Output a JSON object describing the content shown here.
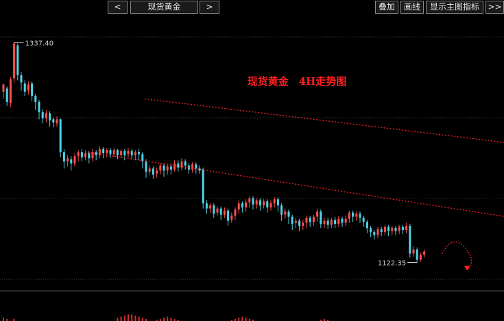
{
  "toolbar": {
    "prev_label": "<",
    "symbol": "现货黄金",
    "next_label": ">",
    "overlay_label": "叠加",
    "drawline_label": "画线",
    "indicator_label": "显示主图指标",
    "expand_label": ">>"
  },
  "chart_data": {
    "type": "candlestick",
    "title": "现货黄金　4H走势图",
    "high_label": "1337.40",
    "low_label": "1122.35",
    "ylim": [
      1100,
      1345
    ],
    "colors": {
      "up": "#ff4d4d",
      "down": "#4fd5e8",
      "trend_line": "#ff2020",
      "grid": "#3a3a3a",
      "title": "#ff2020"
    },
    "channel_upper": [
      [
        40,
        1282
      ],
      [
        244,
        1196
      ]
    ],
    "channel_lower": [
      [
        24,
        1230
      ],
      [
        244,
        1112
      ]
    ],
    "candles": [
      [
        1289,
        1296,
        1282,
        1297
      ],
      [
        1292,
        1279,
        1275,
        1294
      ],
      [
        1278,
        1301,
        1274,
        1303
      ],
      [
        1302,
        1336,
        1298,
        1337.4
      ],
      [
        1334,
        1305,
        1300,
        1336
      ],
      [
        1305,
        1298,
        1290,
        1308
      ],
      [
        1297,
        1289,
        1285,
        1300
      ],
      [
        1290,
        1296,
        1286,
        1299
      ],
      [
        1297,
        1285,
        1280,
        1299
      ],
      [
        1285,
        1279,
        1271,
        1287
      ],
      [
        1279,
        1269,
        1262,
        1281
      ],
      [
        1269,
        1263,
        1258,
        1272
      ],
      [
        1263,
        1268,
        1259,
        1271
      ],
      [
        1268,
        1261,
        1255,
        1270
      ],
      [
        1262,
        1259,
        1254,
        1264
      ],
      [
        1258,
        1262,
        1255,
        1265
      ],
      [
        1262,
        1230,
        1225,
        1263
      ],
      [
        1230,
        1221,
        1214,
        1233
      ],
      [
        1221,
        1224,
        1216,
        1227
      ],
      [
        1223,
        1219,
        1212,
        1226
      ],
      [
        1219,
        1226,
        1216,
        1229
      ],
      [
        1226,
        1230,
        1221,
        1232
      ],
      [
        1230,
        1225,
        1221,
        1233
      ],
      [
        1225,
        1229,
        1222,
        1232
      ],
      [
        1229,
        1224,
        1219,
        1231
      ],
      [
        1224,
        1230,
        1221,
        1233
      ],
      [
        1230,
        1227,
        1222,
        1232
      ],
      [
        1227,
        1233,
        1224,
        1236
      ],
      [
        1233,
        1229,
        1224,
        1235
      ],
      [
        1229,
        1232,
        1225,
        1234
      ],
      [
        1232,
        1228,
        1224,
        1234
      ],
      [
        1228,
        1232,
        1225,
        1234
      ],
      [
        1232,
        1227,
        1223,
        1233
      ],
      [
        1227,
        1231,
        1224,
        1233
      ],
      [
        1231,
        1227,
        1222,
        1233
      ],
      [
        1228,
        1231,
        1225,
        1234
      ],
      [
        1231,
        1227,
        1223,
        1233
      ],
      [
        1227,
        1230,
        1222,
        1232
      ],
      [
        1230,
        1228,
        1222,
        1233
      ],
      [
        1228,
        1221,
        1214,
        1230
      ],
      [
        1221,
        1211,
        1205,
        1223
      ],
      [
        1211,
        1214,
        1208,
        1217
      ],
      [
        1214,
        1208,
        1204,
        1216
      ],
      [
        1209,
        1212,
        1205,
        1215
      ],
      [
        1212,
        1217,
        1208,
        1219
      ],
      [
        1217,
        1212,
        1206,
        1219
      ],
      [
        1212,
        1216,
        1208,
        1218
      ],
      [
        1216,
        1213,
        1208,
        1219
      ],
      [
        1213,
        1219,
        1211,
        1222
      ],
      [
        1219,
        1215,
        1211,
        1222
      ],
      [
        1215,
        1221,
        1212,
        1224
      ],
      [
        1221,
        1217,
        1213,
        1223
      ],
      [
        1217,
        1213,
        1209,
        1219
      ],
      [
        1213,
        1218,
        1210,
        1220
      ],
      [
        1218,
        1214,
        1209,
        1220
      ],
      [
        1214,
        1212,
        1209,
        1217
      ],
      [
        1213,
        1180,
        1175,
        1215
      ],
      [
        1180,
        1175,
        1170,
        1183
      ],
      [
        1175,
        1178,
        1171,
        1180
      ],
      [
        1178,
        1170,
        1166,
        1180
      ],
      [
        1171,
        1175,
        1168,
        1177
      ],
      [
        1175,
        1169,
        1164,
        1177
      ],
      [
        1169,
        1173,
        1166,
        1176
      ],
      [
        1173,
        1163,
        1158,
        1175
      ],
      [
        1164,
        1168,
        1161,
        1171
      ],
      [
        1168,
        1174,
        1164,
        1176
      ],
      [
        1174,
        1180,
        1170,
        1183
      ],
      [
        1180,
        1176,
        1171,
        1182
      ],
      [
        1176,
        1181,
        1172,
        1184
      ],
      [
        1181,
        1185,
        1176,
        1187
      ],
      [
        1185,
        1179,
        1174,
        1187
      ],
      [
        1179,
        1183,
        1175,
        1185
      ],
      [
        1183,
        1178,
        1173,
        1185
      ],
      [
        1178,
        1182,
        1175,
        1184
      ],
      [
        1182,
        1176,
        1171,
        1184
      ],
      [
        1176,
        1180,
        1173,
        1183
      ],
      [
        1180,
        1184,
        1176,
        1186
      ],
      [
        1184,
        1178,
        1172,
        1186
      ],
      [
        1178,
        1169,
        1163,
        1180
      ],
      [
        1169,
        1172,
        1165,
        1175
      ],
      [
        1172,
        1167,
        1160,
        1174
      ],
      [
        1167,
        1160,
        1154,
        1169
      ],
      [
        1161,
        1163,
        1156,
        1166
      ],
      [
        1163,
        1158,
        1153,
        1165
      ],
      [
        1158,
        1161,
        1154,
        1164
      ],
      [
        1161,
        1166,
        1156,
        1168
      ],
      [
        1166,
        1162,
        1157,
        1168
      ],
      [
        1162,
        1167,
        1158,
        1169
      ],
      [
        1167,
        1172,
        1162,
        1175
      ],
      [
        1172,
        1160,
        1156,
        1174
      ],
      [
        1160,
        1163,
        1156,
        1166
      ],
      [
        1163,
        1159,
        1155,
        1166
      ],
      [
        1159,
        1164,
        1156,
        1166
      ],
      [
        1164,
        1160,
        1156,
        1167
      ],
      [
        1160,
        1165,
        1157,
        1168
      ],
      [
        1165,
        1161,
        1157,
        1167
      ],
      [
        1161,
        1165,
        1158,
        1168
      ],
      [
        1165,
        1171,
        1161,
        1173
      ],
      [
        1171,
        1167,
        1162,
        1173
      ],
      [
        1167,
        1170,
        1163,
        1172
      ],
      [
        1170,
        1166,
        1161,
        1172
      ],
      [
        1166,
        1162,
        1157,
        1168
      ],
      [
        1162,
        1156,
        1151,
        1164
      ],
      [
        1156,
        1152,
        1147,
        1158
      ],
      [
        1152,
        1149,
        1145,
        1154
      ],
      [
        1149,
        1155,
        1146,
        1157
      ],
      [
        1155,
        1152,
        1148,
        1157
      ],
      [
        1152,
        1157,
        1149,
        1159
      ],
      [
        1157,
        1153,
        1148,
        1159
      ],
      [
        1153,
        1156,
        1149,
        1158
      ],
      [
        1156,
        1153,
        1149,
        1158
      ],
      [
        1153,
        1157,
        1150,
        1159
      ],
      [
        1157,
        1154,
        1150,
        1159
      ],
      [
        1154,
        1158,
        1151,
        1161
      ],
      [
        1158,
        1131,
        1127,
        1160
      ],
      [
        1131,
        1135,
        1128,
        1138
      ],
      [
        1135,
        1125,
        1122.35,
        1137
      ],
      [
        1125,
        1130,
        1123,
        1132
      ],
      [
        1130,
        1133,
        1127,
        1135
      ]
    ],
    "forecast_path": [
      [
        123,
        1131
      ],
      [
        126,
        1141
      ],
      [
        129,
        1131
      ],
      [
        130,
        1115
      ]
    ],
    "volume": [
      3,
      2,
      0,
      2,
      0,
      0,
      0,
      0,
      0,
      0,
      0,
      0,
      0,
      0,
      0,
      0,
      0,
      0,
      0,
      0,
      0,
      0,
      0,
      0,
      0,
      0,
      0,
      0,
      0,
      0,
      0,
      0,
      3,
      4,
      5,
      6,
      6,
      5,
      4,
      3,
      2,
      0,
      0,
      1,
      2,
      3,
      4,
      3,
      2,
      1,
      0,
      0,
      0,
      0,
      0,
      0,
      0,
      0,
      0,
      0,
      0,
      0,
      0,
      0,
      1,
      2,
      3,
      4,
      3,
      2,
      1,
      0,
      0,
      0,
      0,
      0,
      0,
      0,
      0,
      0,
      0,
      0,
      0,
      0,
      0,
      0,
      0,
      0,
      0,
      1,
      2,
      1,
      0,
      0,
      0,
      0,
      0,
      0,
      0,
      0,
      0,
      0,
      0,
      0,
      0,
      0,
      0,
      0,
      0,
      0,
      0,
      0,
      0,
      0,
      0,
      0,
      0,
      0,
      0,
      0,
      0
    ]
  }
}
